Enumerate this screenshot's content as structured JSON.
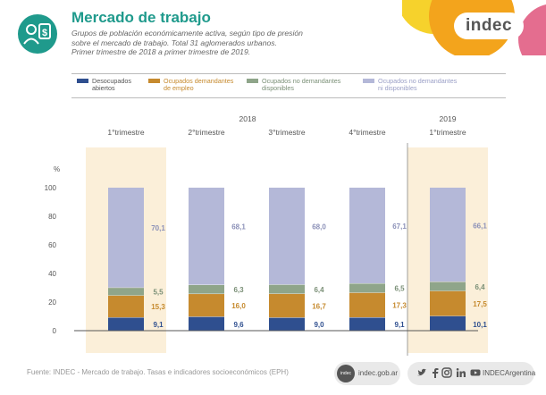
{
  "header": {
    "title": "Mercado de trabajo",
    "subtitle_lines": [
      "Grupos de población económicamente activa, según tipo de presión",
      "sobre el mercado de trabajo. Total 31 aglomerados urbanos.",
      "Primer trimestre de 2018 a primer trimestre de 2019."
    ]
  },
  "brand": {
    "name": "indec"
  },
  "colors": {
    "teal": "#1f9a8c",
    "desocupados": "#2f4f8f",
    "demandantes": "#c68a2e",
    "no_demandantes": "#8fa58a",
    "no_disponibles": "#b4b8d8",
    "highlight": "#fbefd9",
    "brand_orange": "#f3a41c",
    "brand_yellow": "#f6d22c",
    "brand_pink": "#e46d8f"
  },
  "legend": [
    {
      "key": "desocupados",
      "label_lines": [
        "Desocupados",
        "abiertos"
      ]
    },
    {
      "key": "demandantes",
      "label_lines": [
        "Ocupados demandantes",
        "de empleo"
      ]
    },
    {
      "key": "no_demandantes",
      "label_lines": [
        "Ocupados no demandantes",
        "disponibles"
      ]
    },
    {
      "key": "no_disponibles",
      "label_lines": [
        "Ocupados no demandantes",
        "ni disponibles"
      ]
    }
  ],
  "chart_data": {
    "type": "bar",
    "stacked": true,
    "ylabel": "%",
    "ylim": [
      0,
      100
    ],
    "yticks": [
      0,
      20,
      40,
      60,
      80,
      100
    ],
    "years": [
      {
        "label": "2018",
        "span": [
          0,
          3
        ]
      },
      {
        "label": "2019",
        "span": [
          4,
          4
        ]
      }
    ],
    "categories": [
      "1°trimestre",
      "2°trimestre",
      "3°trimestre",
      "4°trimestre",
      "1°trimestre"
    ],
    "highlighted": [
      0,
      4
    ],
    "series": [
      {
        "key": "desocupados",
        "values": [
          9.1,
          9.6,
          9.0,
          9.1,
          10.1
        ],
        "labels": [
          "9,1",
          "9,6",
          "9,0",
          "9,1",
          "10,1"
        ]
      },
      {
        "key": "demandantes",
        "values": [
          15.3,
          16.0,
          16.7,
          17.3,
          17.5
        ],
        "labels": [
          "15,3",
          "16,0",
          "16,7",
          "17,3",
          "17,5"
        ]
      },
      {
        "key": "no_demandantes",
        "values": [
          5.5,
          6.3,
          6.4,
          6.5,
          6.4
        ],
        "labels": [
          "5,5",
          "6,3",
          "6,4",
          "6,5",
          "6,4"
        ]
      },
      {
        "key": "no_disponibles",
        "values": [
          70.1,
          68.1,
          68.0,
          67.1,
          66.1
        ],
        "labels": [
          "70,1",
          "68,1",
          "68,0",
          "67,1",
          "66,1"
        ]
      }
    ]
  },
  "footer": {
    "source": "Fuente: INDEC - Mercado de trabajo. Tasas e indicadores socioeconómicos (EPH)",
    "website": "indec.gob.ar",
    "social_handle": "INDECArgentina",
    "social_icons": [
      "twitter-icon",
      "facebook-icon",
      "instagram-icon",
      "linkedin-icon",
      "youtube-icon"
    ]
  }
}
